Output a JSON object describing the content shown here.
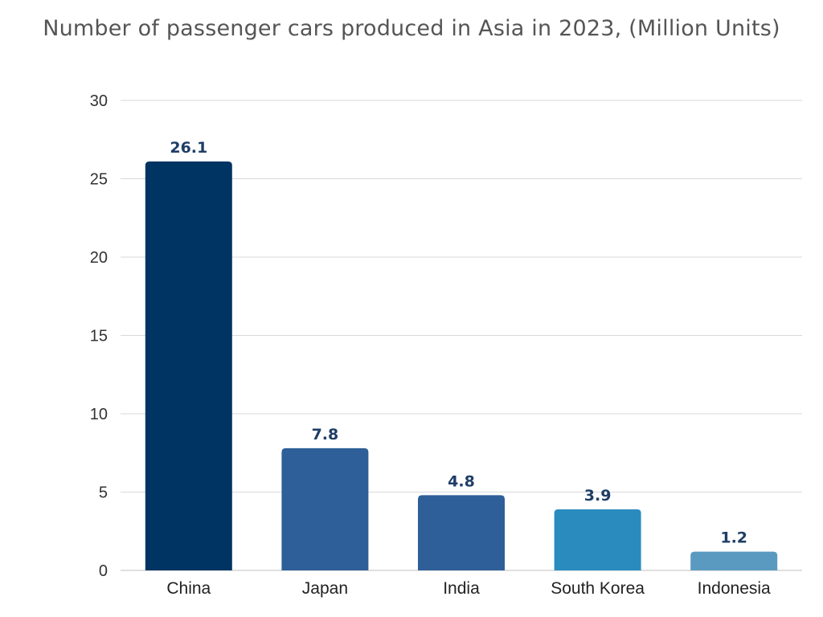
{
  "chart_data": {
    "type": "bar",
    "title": "Number of passenger cars produced in Asia in 2023, (Million Units)",
    "xlabel": "",
    "ylabel": "",
    "ylim": [
      0,
      30
    ],
    "yticks": [
      0,
      5,
      10,
      15,
      20,
      25,
      30
    ],
    "grid": true,
    "categories": [
      "China",
      "Japan",
      "India",
      "South Korea",
      "Indonesia"
    ],
    "values": [
      26.1,
      7.8,
      4.8,
      3.9,
      1.2
    ],
    "value_labels": [
      "26.1",
      "7.8",
      "4.8",
      "3.9",
      "1.2"
    ],
    "colors": [
      "#003462",
      "#2e5f98",
      "#2e5f98",
      "#2a8bbf",
      "#5b9ac0"
    ],
    "label_color": "#1f3d66"
  }
}
